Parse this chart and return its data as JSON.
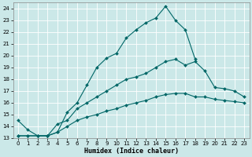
{
  "xlabel": "Humidex (Indice chaleur)",
  "bg_color": "#cbe8e8",
  "grid_color": "#ffffff",
  "line_color": "#006666",
  "xlim": [
    -0.5,
    23.5
  ],
  "ylim": [
    13,
    24.5
  ],
  "yticks": [
    13,
    14,
    15,
    16,
    17,
    18,
    19,
    20,
    21,
    22,
    23,
    24
  ],
  "xticks": [
    0,
    1,
    2,
    3,
    4,
    5,
    6,
    7,
    8,
    9,
    10,
    11,
    12,
    13,
    14,
    15,
    16,
    17,
    18,
    19,
    20,
    21,
    22,
    23
  ],
  "line1_y": [
    14.5,
    13.7,
    13.2,
    13.2,
    13.5,
    15.2,
    16.0,
    17.5,
    19.0,
    19.8,
    20.2,
    21.5,
    22.2,
    22.8,
    23.2,
    24.2,
    23.0,
    22.2,
    19.7,
    null,
    null,
    null,
    null,
    null
  ],
  "line2_y": [
    13.2,
    13.2,
    13.2,
    13.2,
    14.2,
    14.5,
    15.5,
    16.0,
    16.5,
    17.0,
    17.5,
    18.0,
    18.2,
    18.5,
    19.0,
    19.5,
    19.7,
    19.2,
    19.5,
    18.7,
    17.3,
    17.2,
    17.0,
    16.5
  ],
  "line3_y": [
    13.2,
    13.2,
    13.2,
    13.2,
    13.5,
    14.0,
    14.5,
    14.8,
    15.0,
    15.3,
    15.5,
    15.8,
    16.0,
    16.2,
    16.5,
    16.7,
    16.8,
    16.8,
    16.5,
    16.5,
    16.3,
    16.2,
    16.1,
    16.0
  ]
}
